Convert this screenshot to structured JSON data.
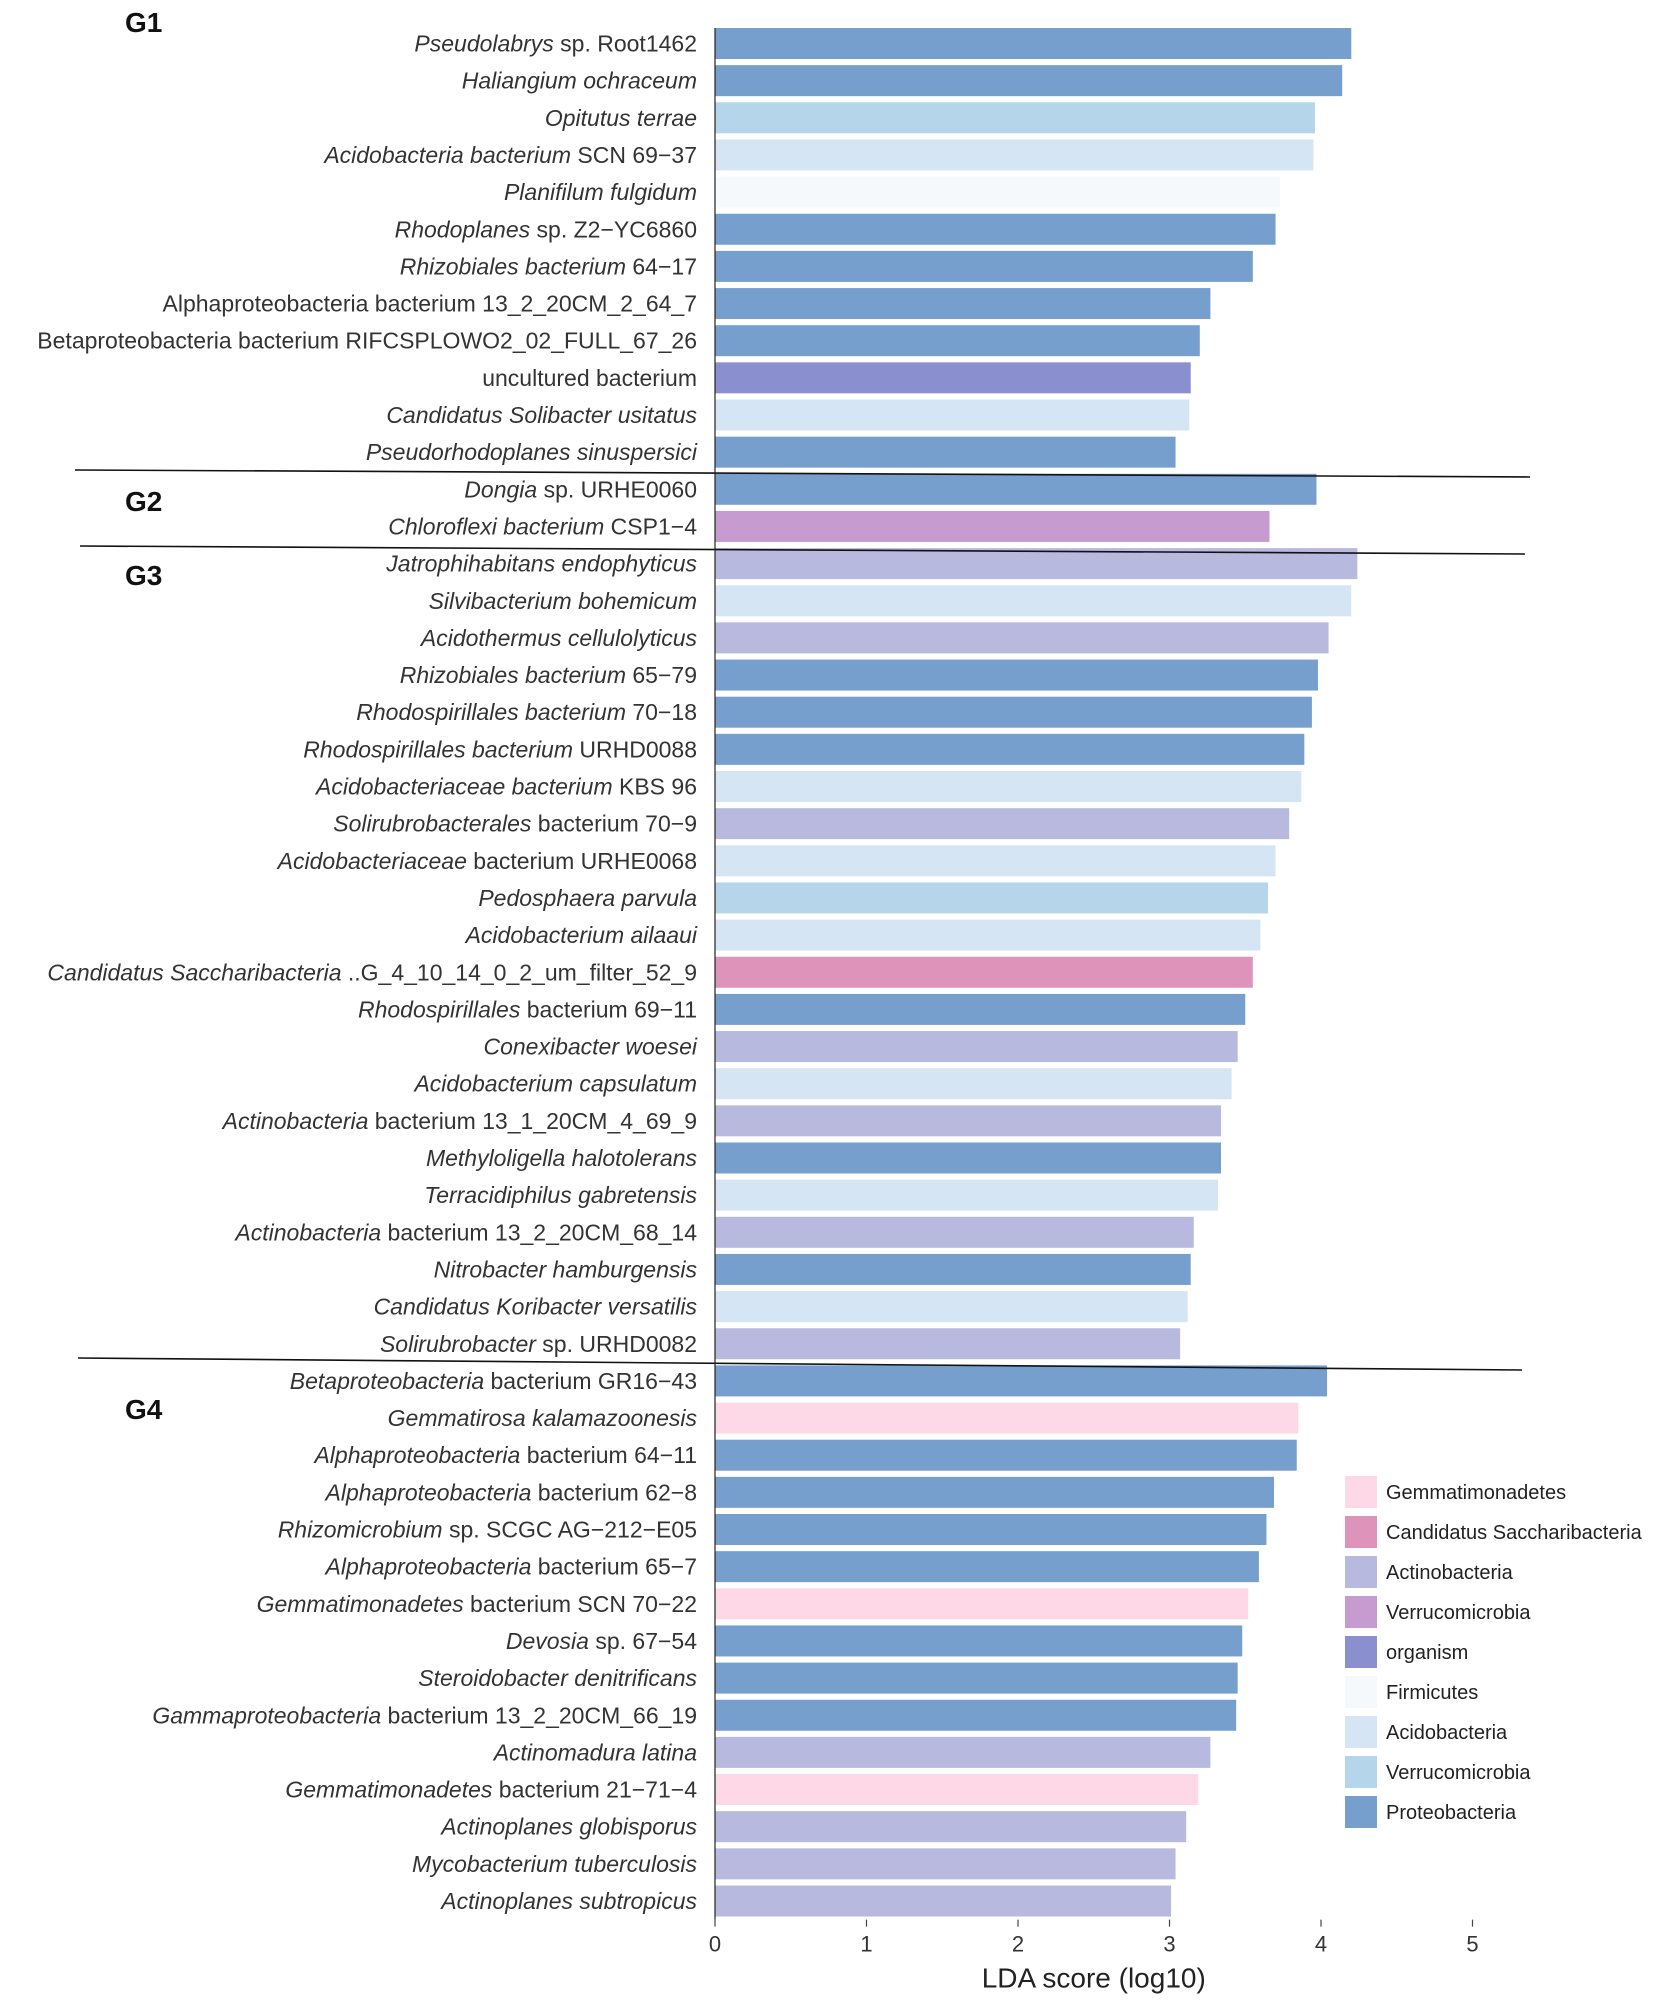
{
  "chart_data": {
    "type": "bar",
    "orientation": "horizontal",
    "xlabel": "LDA score (log10)",
    "xlim": [
      0,
      5
    ],
    "xticks": [
      0,
      1,
      2,
      3,
      4,
      5
    ],
    "colors": {
      "Gemmatimonadetes": "#fdd8e6",
      "Candidatus Saccharibacteria": "#de93bb",
      "Actinobacteria": "#b8b9de",
      "Verrucomicrobia_purple": "#c69bcf",
      "organism": "#898fcf",
      "Firmicutes": "#f5f9fb",
      "Acidobacteria": "#d6e5f3",
      "Verrucomicrobia_blue": "#b5d5ea",
      "Proteobacteria": "#779fce"
    },
    "legend": [
      {
        "label": "Gemmatimonadetes",
        "key": "Gemmatimonadetes"
      },
      {
        "label": "Candidatus Saccharibacteria",
        "key": "Candidatus Saccharibacteria"
      },
      {
        "label": "Actinobacteria",
        "key": "Actinobacteria"
      },
      {
        "label": "Verrucomicrobia",
        "key": "Verrucomicrobia_purple"
      },
      {
        "label": "organism",
        "key": "organism"
      },
      {
        "label": "Firmicutes",
        "key": "Firmicutes"
      },
      {
        "label": "Acidobacteria",
        "key": "Acidobacteria"
      },
      {
        "label": "Verrucomicrobia",
        "key": "Verrucomicrobia_blue"
      },
      {
        "label": "Proteobacteria",
        "key": "Proteobacteria"
      }
    ],
    "groups": [
      {
        "label": "G1",
        "bars": [
          {
            "taxon": [
              [
                "Pseudolabrys",
                true
              ],
              [
                " sp. Root1462",
                false
              ]
            ],
            "value": 4.2,
            "phylum": "Proteobacteria"
          },
          {
            "taxon": [
              [
                "Haliangium ochraceum",
                true
              ]
            ],
            "value": 4.14,
            "phylum": "Proteobacteria"
          },
          {
            "taxon": [
              [
                "Opitutus terrae",
                true
              ]
            ],
            "value": 3.96,
            "phylum": "Verrucomicrobia_blue"
          },
          {
            "taxon": [
              [
                "Acidobacteria bacterium",
                true
              ],
              [
                " SCN 69−37",
                false
              ]
            ],
            "value": 3.95,
            "phylum": "Acidobacteria"
          },
          {
            "taxon": [
              [
                "Planifilum fulgidum",
                true
              ]
            ],
            "value": 3.73,
            "phylum": "Firmicutes"
          },
          {
            "taxon": [
              [
                "Rhodoplanes",
                true
              ],
              [
                " sp. Z2−YC6860",
                false
              ]
            ],
            "value": 3.7,
            "phylum": "Proteobacteria"
          },
          {
            "taxon": [
              [
                "Rhizobiales bacterium",
                true
              ],
              [
                " 64−17",
                false
              ]
            ],
            "value": 3.55,
            "phylum": "Proteobacteria"
          },
          {
            "taxon": [
              [
                "Alphaproteobacteria bacterium 13_2_20CM_2_64_7",
                false
              ]
            ],
            "value": 3.27,
            "phylum": "Proteobacteria"
          },
          {
            "taxon": [
              [
                "Betaproteobacteria bacterium RIFCSPLOWO2_02_FULL_67_26",
                false
              ]
            ],
            "value": 3.2,
            "phylum": "Proteobacteria"
          },
          {
            "taxon": [
              [
                "uncultured bacterium",
                false
              ]
            ],
            "value": 3.14,
            "phylum": "organism"
          },
          {
            "taxon": [
              [
                "Candidatus Solibacter usitatus",
                true
              ]
            ],
            "value": 3.13,
            "phylum": "Acidobacteria"
          },
          {
            "taxon": [
              [
                "Pseudorhodoplanes sinuspersici",
                true
              ]
            ],
            "value": 3.04,
            "phylum": "Proteobacteria"
          }
        ]
      },
      {
        "label": "G2",
        "bars": [
          {
            "taxon": [
              [
                "Dongia",
                true
              ],
              [
                " sp. URHE0060",
                false
              ]
            ],
            "value": 3.97,
            "phylum": "Proteobacteria"
          },
          {
            "taxon": [
              [
                "Chloroflexi bacterium",
                true
              ],
              [
                " CSP1−4",
                false
              ]
            ],
            "value": 3.66,
            "phylum": "Verrucomicrobia_purple"
          }
        ]
      },
      {
        "label": "G3",
        "bars": [
          {
            "taxon": [
              [
                "Jatrophihabitans endophyticus",
                true
              ]
            ],
            "value": 4.24,
            "phylum": "Actinobacteria"
          },
          {
            "taxon": [
              [
                "Silvibacterium bohemicum",
                true
              ]
            ],
            "value": 4.2,
            "phylum": "Acidobacteria"
          },
          {
            "taxon": [
              [
                "Acidothermus cellulolyticus",
                true
              ]
            ],
            "value": 4.05,
            "phylum": "Actinobacteria"
          },
          {
            "taxon": [
              [
                "Rhizobiales bacterium",
                true
              ],
              [
                " 65−79",
                false
              ]
            ],
            "value": 3.98,
            "phylum": "Proteobacteria"
          },
          {
            "taxon": [
              [
                "Rhodospirillales bacterium",
                true
              ],
              [
                " 70−18",
                false
              ]
            ],
            "value": 3.94,
            "phylum": "Proteobacteria"
          },
          {
            "taxon": [
              [
                "Rhodospirillales bacterium",
                true
              ],
              [
                " URHD0088",
                false
              ]
            ],
            "value": 3.89,
            "phylum": "Proteobacteria"
          },
          {
            "taxon": [
              [
                "Acidobacteriaceae bacterium",
                true
              ],
              [
                " KBS 96",
                false
              ]
            ],
            "value": 3.87,
            "phylum": "Acidobacteria"
          },
          {
            "taxon": [
              [
                "Solirubrobacterales",
                true
              ],
              [
                " bacterium 70−9",
                false
              ]
            ],
            "value": 3.79,
            "phylum": "Actinobacteria"
          },
          {
            "taxon": [
              [
                "Acidobacteriaceae",
                true
              ],
              [
                " bacterium URHE0068",
                false
              ]
            ],
            "value": 3.7,
            "phylum": "Acidobacteria"
          },
          {
            "taxon": [
              [
                "Pedosphaera parvula",
                true
              ]
            ],
            "value": 3.65,
            "phylum": "Verrucomicrobia_blue"
          },
          {
            "taxon": [
              [
                "Acidobacterium ailaaui",
                true
              ]
            ],
            "value": 3.6,
            "phylum": "Acidobacteria"
          },
          {
            "taxon": [
              [
                "Candidatus Saccharibacteria",
                true
              ],
              [
                " ..G_4_10_14_0_2_um_filter_52_9",
                false
              ]
            ],
            "value": 3.55,
            "phylum": "Candidatus Saccharibacteria"
          },
          {
            "taxon": [
              [
                "Rhodospirillales",
                true
              ],
              [
                " bacterium 69−11",
                false
              ]
            ],
            "value": 3.5,
            "phylum": "Proteobacteria"
          },
          {
            "taxon": [
              [
                "Conexibacter woesei",
                true
              ]
            ],
            "value": 3.45,
            "phylum": "Actinobacteria"
          },
          {
            "taxon": [
              [
                "Acidobacterium capsulatum",
                true
              ]
            ],
            "value": 3.41,
            "phylum": "Acidobacteria"
          },
          {
            "taxon": [
              [
                "Actinobacteria",
                true
              ],
              [
                " bacterium 13_1_20CM_4_69_9",
                false
              ]
            ],
            "value": 3.34,
            "phylum": "Actinobacteria"
          },
          {
            "taxon": [
              [
                "Methyloligella halotolerans",
                true
              ]
            ],
            "value": 3.34,
            "phylum": "Proteobacteria"
          },
          {
            "taxon": [
              [
                "Terracidiphilus gabretensis",
                true
              ]
            ],
            "value": 3.32,
            "phylum": "Acidobacteria"
          },
          {
            "taxon": [
              [
                "Actinobacteria",
                true
              ],
              [
                " bacterium 13_2_20CM_68_14",
                false
              ]
            ],
            "value": 3.16,
            "phylum": "Actinobacteria"
          },
          {
            "taxon": [
              [
                "Nitrobacter hamburgensis",
                true
              ]
            ],
            "value": 3.14,
            "phylum": "Proteobacteria"
          },
          {
            "taxon": [
              [
                "Candidatus Koribacter versatilis",
                true
              ]
            ],
            "value": 3.12,
            "phylum": "Acidobacteria"
          },
          {
            "taxon": [
              [
                "Solirubrobacter",
                true
              ],
              [
                " sp. URHD0082",
                false
              ]
            ],
            "value": 3.07,
            "phylum": "Actinobacteria"
          }
        ]
      },
      {
        "label": "G4",
        "bars": [
          {
            "taxon": [
              [
                "Betaproteobacteria",
                true
              ],
              [
                " bacterium GR16−43",
                false
              ]
            ],
            "value": 4.04,
            "phylum": "Proteobacteria"
          },
          {
            "taxon": [
              [
                "Gemmatirosa kalamazoonesis",
                true
              ]
            ],
            "value": 3.85,
            "phylum": "Gemmatimonadetes"
          },
          {
            "taxon": [
              [
                "Alphaproteobacteria",
                true
              ],
              [
                " bacterium 64−11",
                false
              ]
            ],
            "value": 3.84,
            "phylum": "Proteobacteria"
          },
          {
            "taxon": [
              [
                "Alphaproteobacteria",
                true
              ],
              [
                " bacterium 62−8",
                false
              ]
            ],
            "value": 3.69,
            "phylum": "Proteobacteria"
          },
          {
            "taxon": [
              [
                "Rhizomicrobium",
                true
              ],
              [
                " sp. SCGC AG−212−E05",
                false
              ]
            ],
            "value": 3.64,
            "phylum": "Proteobacteria"
          },
          {
            "taxon": [
              [
                "Alphaproteobacteria",
                true
              ],
              [
                " bacterium 65−7",
                false
              ]
            ],
            "value": 3.59,
            "phylum": "Proteobacteria"
          },
          {
            "taxon": [
              [
                "Gemmatimonadetes",
                true
              ],
              [
                " bacterium SCN 70−22",
                false
              ]
            ],
            "value": 3.52,
            "phylum": "Gemmatimonadetes"
          },
          {
            "taxon": [
              [
                "Devosia",
                true
              ],
              [
                " sp. 67−54",
                false
              ]
            ],
            "value": 3.48,
            "phylum": "Proteobacteria"
          },
          {
            "taxon": [
              [
                "Steroidobacter denitrificans",
                true
              ]
            ],
            "value": 3.45,
            "phylum": "Proteobacteria"
          },
          {
            "taxon": [
              [
                "Gammaproteobacteria",
                true
              ],
              [
                " bacterium 13_2_20CM_66_19",
                false
              ]
            ],
            "value": 3.44,
            "phylum": "Proteobacteria"
          },
          {
            "taxon": [
              [
                "Actinomadura latina",
                true
              ]
            ],
            "value": 3.27,
            "phylum": "Actinobacteria"
          },
          {
            "taxon": [
              [
                "Gemmatimonadetes",
                true
              ],
              [
                " bacterium 21−71−4",
                false
              ]
            ],
            "value": 3.19,
            "phylum": "Gemmatimonadetes"
          },
          {
            "taxon": [
              [
                "Actinoplanes globisporus",
                true
              ]
            ],
            "value": 3.11,
            "phylum": "Actinobacteria"
          },
          {
            "taxon": [
              [
                "Mycobacterium tuberculosis",
                true
              ]
            ],
            "value": 3.04,
            "phylum": "Actinobacteria"
          },
          {
            "taxon": [
              [
                "Actinoplanes subtropicus",
                true
              ]
            ],
            "value": 3.01,
            "phylum": "Actinobacteria"
          }
        ]
      }
    ]
  }
}
